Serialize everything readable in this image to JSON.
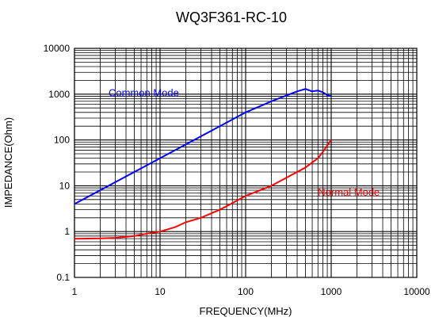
{
  "chart_data": {
    "type": "line",
    "title": "WQ3F361-RC-10",
    "xlabel": "FREQUENCY(MHz)",
    "ylabel": "IMPEDANCE(Ohm)",
    "x_scale": "log",
    "y_scale": "log",
    "xlim": [
      1,
      10000
    ],
    "ylim": [
      0.1,
      10000
    ],
    "x_ticks": [
      1,
      10,
      100,
      1000,
      10000
    ],
    "x_tick_labels": [
      "1",
      "10",
      "100",
      "1000",
      "10000"
    ],
    "y_ticks": [
      0.1,
      1,
      10,
      100,
      1000,
      10000
    ],
    "y_tick_labels": [
      "0.1",
      "1",
      "10",
      "100",
      "1000",
      "10000"
    ],
    "grid": true,
    "series": [
      {
        "name": "Common Mode",
        "color": "#0000ff",
        "x": [
          1,
          2,
          5,
          10,
          20,
          50,
          100,
          200,
          400,
          500,
          600,
          700,
          800,
          900,
          1000
        ],
        "y": [
          4,
          8,
          20,
          40,
          80,
          200,
          400,
          700,
          1150,
          1300,
          1150,
          1200,
          1100,
          950,
          900
        ]
      },
      {
        "name": "Normal Mode",
        "color": "#ff0000",
        "x": [
          1,
          2,
          3,
          5,
          7,
          10,
          15,
          20,
          30,
          50,
          70,
          100,
          200,
          500,
          700,
          800,
          1000
        ],
        "y": [
          0.7,
          0.71,
          0.73,
          0.8,
          0.9,
          1.0,
          1.25,
          1.6,
          2.0,
          3.0,
          4.2,
          6.0,
          10.0,
          25.0,
          40.0,
          55.0,
          100.0
        ]
      }
    ]
  }
}
